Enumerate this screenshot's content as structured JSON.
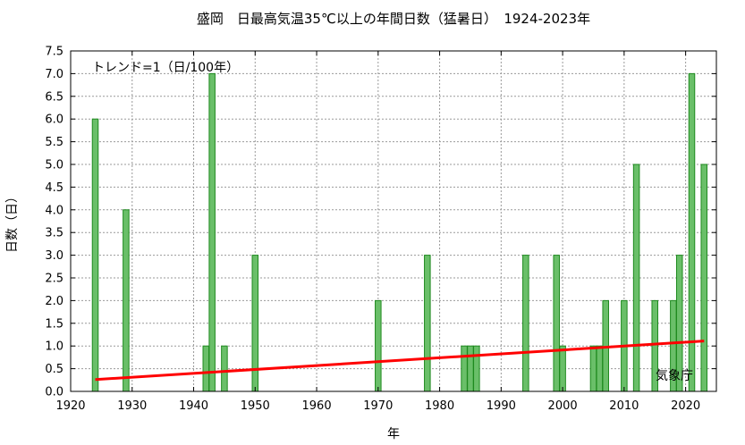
{
  "chart_data": {
    "type": "bar",
    "title": "盛岡　日最高気温35℃以上の年間日数（猛暑日）　1924-2023年",
    "xlabel": "年",
    "ylabel": "日数（日）",
    "xlim": [
      1920,
      2025
    ],
    "ylim": [
      0,
      7.5
    ],
    "x_ticks": [
      1920,
      1930,
      1940,
      1950,
      1960,
      1970,
      1980,
      1990,
      2000,
      2010,
      2020
    ],
    "y_ticks": [
      "0.0",
      "0.5",
      "1.0",
      "1.5",
      "2.0",
      "2.5",
      "3.0",
      "3.5",
      "4.0",
      "4.5",
      "5.0",
      "5.5",
      "6.0",
      "6.5",
      "7.0",
      "7.5"
    ],
    "grid": true,
    "bar_color": "#6abf69",
    "bar_edge_color": "#1f8a1f",
    "trend_color": "#ff0000",
    "trend_annotation": "トレンド=1（日/100年）",
    "source": "気象庁",
    "x": [
      1924,
      1929,
      1942,
      1943,
      1945,
      1950,
      1970,
      1978,
      1984,
      1985,
      1986,
      1994,
      1999,
      2000,
      2005,
      2006,
      2007,
      2010,
      2012,
      2015,
      2018,
      2019,
      2021,
      2023
    ],
    "values": [
      6,
      4,
      1,
      7,
      1,
      3,
      2,
      3,
      1,
      1,
      1,
      3,
      3,
      1,
      1,
      1,
      2,
      2,
      5,
      2,
      2,
      3,
      7,
      5
    ],
    "trend": {
      "x": [
        1924,
        2023
      ],
      "y": [
        0.26,
        1.11
      ]
    }
  }
}
